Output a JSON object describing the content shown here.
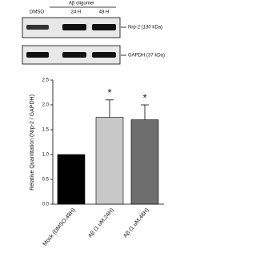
{
  "blot": {
    "header": "Aβ oligomer",
    "lanes": [
      "DMSO",
      "24 H",
      "48 H"
    ],
    "bands": [
      "Nrp-2 (130 kDa)",
      "GAPDH (37 kDa)"
    ]
  },
  "chart_data": {
    "type": "bar",
    "y_label": "Relative Quantitation (Nrp-2 / GAPDH)",
    "categories": [
      "Mock (DMSO,48H)",
      "Aβ (1 uM,24H)",
      "Aβ (1 uM,48H)"
    ],
    "values": [
      1.0,
      1.75,
      1.7
    ],
    "errors": [
      0,
      0.35,
      0.3
    ],
    "colors": [
      "#000000",
      "#c8c8c8",
      "#6e6e6e"
    ],
    "annotations": [
      "",
      "*",
      "*"
    ],
    "ylim": [
      0,
      2.5
    ],
    "yticks": [
      {
        "value": 0,
        "label": "0.0"
      },
      {
        "value": 0.5,
        "label": "0.5"
      },
      {
        "value": 1,
        "label": "1.0"
      },
      {
        "value": 1.5,
        "label": "1.5"
      },
      {
        "value": 2,
        "label": "2.0"
      },
      {
        "value": 2.5,
        "label": "2.5"
      }
    ]
  }
}
